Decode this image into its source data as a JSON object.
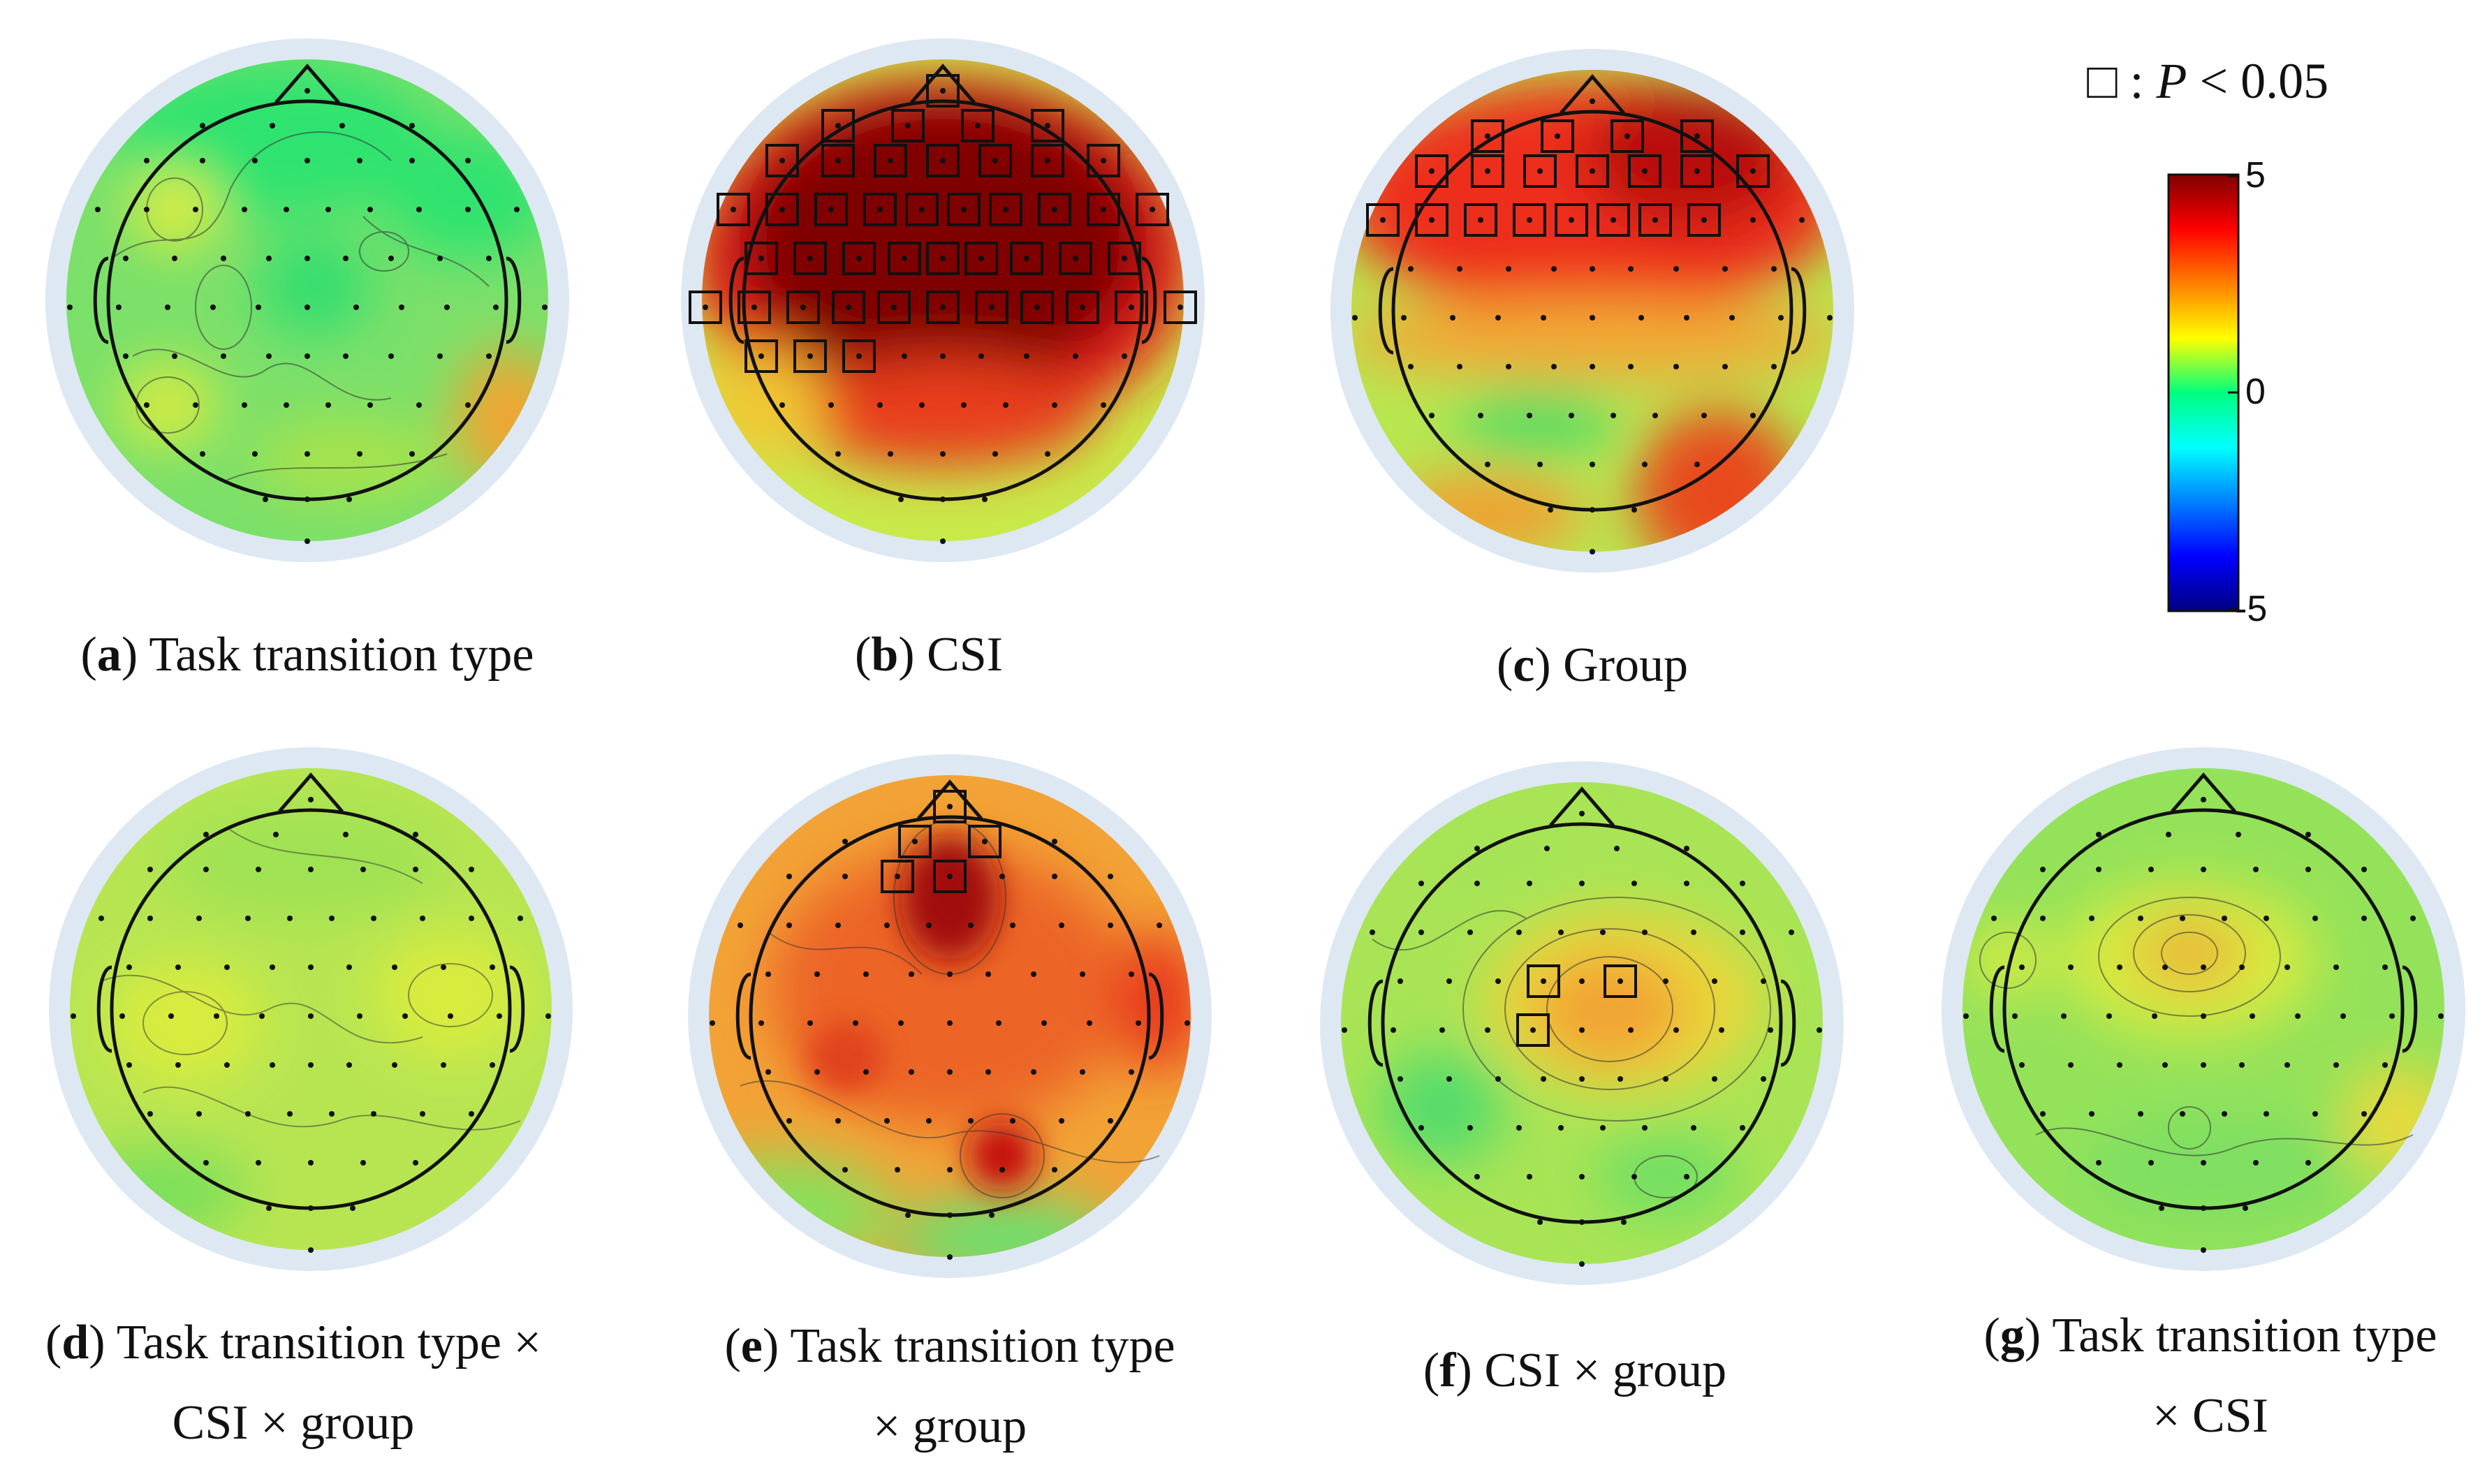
{
  "figure": {
    "legend": {
      "marker": "□",
      "separator": " : ",
      "p_symbol": "P",
      "threshold": "< 0.05"
    },
    "colorbar": {
      "max_label": "5",
      "zero_label": "0",
      "min_label": "-5",
      "range": [
        -5,
        5
      ],
      "colors": [
        "#00007f",
        "#0000ff",
        "#00ffff",
        "#00ff7f",
        "#ffff00",
        "#ff0000",
        "#7f0000"
      ]
    },
    "panels": [
      {
        "key": "a",
        "label": "a",
        "lines": [
          "Task transition type"
        ],
        "dominant_value": 0.8,
        "significant_count": 0
      },
      {
        "key": "b",
        "label": "b",
        "lines": [
          "CSI"
        ],
        "dominant_value": 4.8,
        "significant_count": 45
      },
      {
        "key": "c",
        "label": "c",
        "lines": [
          "Group"
        ],
        "dominant_value": 3.8,
        "significant_count": 19
      },
      {
        "key": "d",
        "label": "d",
        "lines": [
          "Task transition type ×",
          "CSI × group"
        ],
        "dominant_value": 1.5,
        "significant_count": 0
      },
      {
        "key": "e",
        "label": "e",
        "lines": [
          "Task transition type",
          "× group"
        ],
        "dominant_value": 3.0,
        "significant_count": 5
      },
      {
        "key": "f",
        "label": "f",
        "lines": [
          "CSI × group"
        ],
        "dominant_value": 1.6,
        "significant_count": 3
      },
      {
        "key": "g",
        "label": "g",
        "lines": [
          "Task transition type",
          "× CSI"
        ],
        "dominant_value": 1.4,
        "significant_count": 0
      }
    ]
  }
}
